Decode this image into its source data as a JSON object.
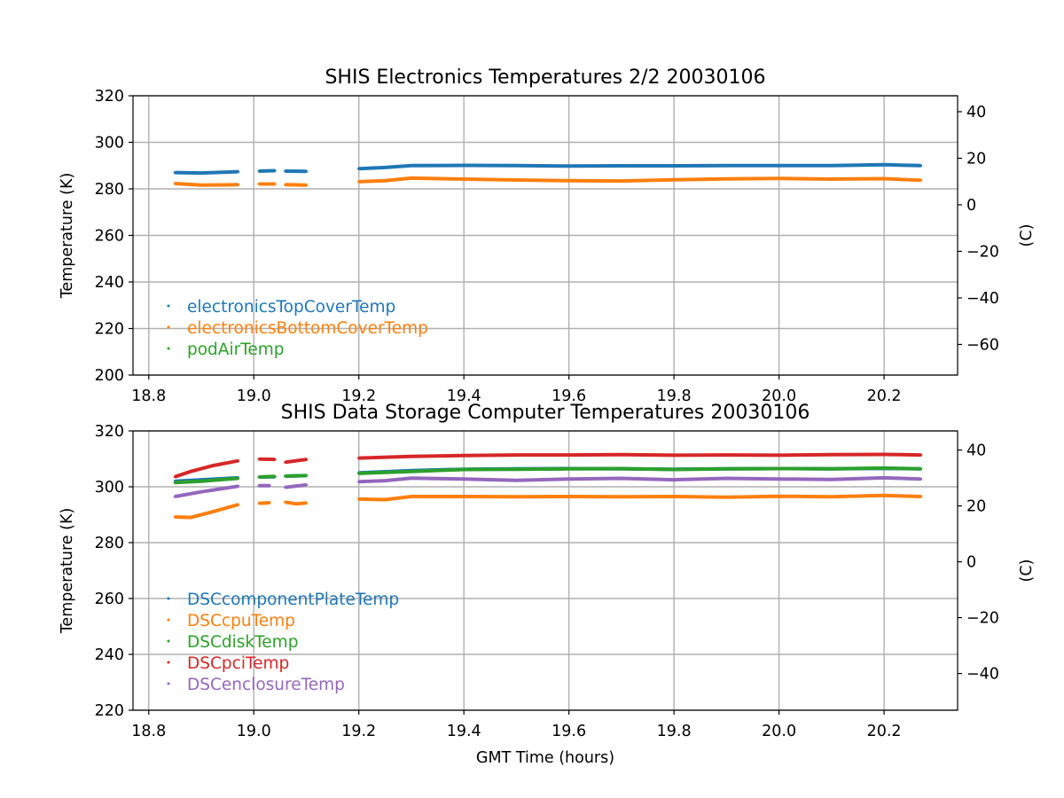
{
  "chart_data": [
    {
      "type": "scatter",
      "title": "SHIS Electronics Temperatures 2/2 20030106",
      "xlabel": "",
      "ylabel": "Temperature (K)",
      "ylabel_right": "(C)",
      "xlim": [
        18.77,
        20.34
      ],
      "ylim": [
        200,
        320
      ],
      "ylim_right": [
        -73.15,
        46.85
      ],
      "xticks": [
        "18.8",
        "19.0",
        "19.2",
        "19.4",
        "19.6",
        "19.8",
        "20.0",
        "20.2"
      ],
      "yticks": [
        "200",
        "220",
        "240",
        "260",
        "280",
        "300",
        "320"
      ],
      "yticks_right": [
        "−60",
        "−40",
        "−20",
        "0",
        "20",
        "40"
      ],
      "grid": true,
      "legend_position": "lower-left",
      "series": [
        {
          "name": "electronicsTopCoverTemp",
          "color": "#1f77b4",
          "segments": [
            [
              [
                18.85,
                287.0
              ],
              [
                18.9,
                286.8
              ],
              [
                18.95,
                287.2
              ],
              [
                18.97,
                287.4
              ]
            ],
            [
              [
                19.01,
                287.6
              ],
              [
                19.04,
                287.8
              ]
            ],
            [
              [
                19.06,
                287.6
              ],
              [
                19.1,
                287.5
              ]
            ],
            [
              [
                19.2,
                288.7
              ],
              [
                19.25,
                289.2
              ],
              [
                19.3,
                290.0
              ],
              [
                19.4,
                290.1
              ],
              [
                19.5,
                290.0
              ],
              [
                19.6,
                289.8
              ],
              [
                19.7,
                289.9
              ],
              [
                19.8,
                289.9
              ],
              [
                19.9,
                290.0
              ],
              [
                20.0,
                290.0
              ],
              [
                20.1,
                290.0
              ],
              [
                20.2,
                290.4
              ],
              [
                20.27,
                290.0
              ]
            ]
          ]
        },
        {
          "name": "electronicsBottomCoverTemp",
          "color": "#ff7f0e",
          "segments": [
            [
              [
                18.85,
                282.3
              ],
              [
                18.9,
                281.6
              ],
              [
                18.95,
                281.7
              ],
              [
                18.97,
                281.8
              ]
            ],
            [
              [
                19.01,
                282.1
              ],
              [
                19.04,
                282.1
              ]
            ],
            [
              [
                19.06,
                281.8
              ],
              [
                19.1,
                281.6
              ]
            ],
            [
              [
                19.2,
                283.1
              ],
              [
                19.25,
                283.5
              ],
              [
                19.3,
                284.6
              ],
              [
                19.4,
                284.2
              ],
              [
                19.5,
                283.8
              ],
              [
                19.6,
                283.5
              ],
              [
                19.7,
                283.4
              ],
              [
                19.8,
                283.9
              ],
              [
                19.9,
                284.3
              ],
              [
                20.0,
                284.5
              ],
              [
                20.1,
                284.2
              ],
              [
                20.2,
                284.4
              ],
              [
                20.27,
                283.7
              ]
            ]
          ]
        },
        {
          "name": "podAirTemp",
          "color": "#2ca02c",
          "segments": []
        }
      ]
    },
    {
      "type": "scatter",
      "title": "SHIS Data Storage Computer Temperatures 20030106",
      "xlabel": "GMT Time (hours)",
      "ylabel": "Temperature (K)",
      "ylabel_right": "(C)",
      "xlim": [
        18.77,
        20.34
      ],
      "ylim": [
        220,
        320
      ],
      "ylim_right": [
        -53.15,
        46.85
      ],
      "xticks": [
        "18.8",
        "19.0",
        "19.2",
        "19.4",
        "19.6",
        "19.8",
        "20.0",
        "20.2"
      ],
      "yticks": [
        "220",
        "240",
        "260",
        "280",
        "300",
        "320"
      ],
      "yticks_right": [
        "−40",
        "−20",
        "0",
        "20",
        "40"
      ],
      "grid": true,
      "legend_position": "lower-left",
      "series": [
        {
          "name": "DSCcomponentPlateTemp",
          "color": "#1f77b4",
          "segments": [
            [
              [
                18.85,
                302.0
              ],
              [
                18.9,
                302.5
              ],
              [
                18.97,
                303.2
              ]
            ],
            [
              [
                19.01,
                303.5
              ],
              [
                19.04,
                303.6
              ]
            ],
            [
              [
                19.06,
                303.8
              ],
              [
                19.1,
                304.0
              ]
            ],
            [
              [
                19.2,
                305.0
              ],
              [
                19.3,
                305.8
              ],
              [
                19.4,
                306.3
              ],
              [
                19.5,
                306.4
              ],
              [
                19.6,
                306.5
              ],
              [
                19.7,
                306.4
              ],
              [
                19.8,
                306.3
              ],
              [
                19.9,
                306.4
              ],
              [
                20.0,
                306.5
              ],
              [
                20.1,
                306.4
              ],
              [
                20.2,
                306.6
              ],
              [
                20.27,
                306.4
              ]
            ]
          ]
        },
        {
          "name": "DSCcpuTemp",
          "color": "#ff7f0e",
          "segments": [
            [
              [
                18.85,
                289.2
              ],
              [
                18.88,
                289.0
              ],
              [
                18.92,
                291.0
              ],
              [
                18.97,
                293.6
              ]
            ],
            [
              [
                19.01,
                294.1
              ],
              [
                19.03,
                294.3
              ]
            ],
            [
              [
                19.06,
                294.5
              ],
              [
                19.08,
                293.9
              ],
              [
                19.1,
                294.2
              ]
            ],
            [
              [
                19.2,
                295.6
              ],
              [
                19.25,
                295.4
              ],
              [
                19.3,
                296.5
              ],
              [
                19.4,
                296.5
              ],
              [
                19.5,
                296.4
              ],
              [
                19.6,
                296.5
              ],
              [
                19.7,
                296.4
              ],
              [
                19.8,
                296.5
              ],
              [
                19.9,
                296.3
              ],
              [
                20.0,
                296.6
              ],
              [
                20.1,
                296.4
              ],
              [
                20.2,
                296.9
              ],
              [
                20.27,
                296.5
              ]
            ]
          ]
        },
        {
          "name": "DSCdiskTemp",
          "color": "#2ca02c",
          "segments": [
            [
              [
                18.85,
                301.5
              ],
              [
                18.9,
                302.0
              ],
              [
                18.97,
                303.0
              ]
            ],
            [
              [
                19.01,
                303.5
              ],
              [
                19.04,
                303.7
              ]
            ],
            [
              [
                19.06,
                303.8
              ],
              [
                19.1,
                304.0
              ]
            ],
            [
              [
                19.2,
                304.8
              ],
              [
                19.3,
                305.5
              ],
              [
                19.4,
                306.2
              ],
              [
                19.5,
                306.3
              ],
              [
                19.6,
                306.4
              ],
              [
                19.7,
                306.5
              ],
              [
                19.8,
                306.2
              ],
              [
                19.9,
                306.4
              ],
              [
                20.0,
                306.5
              ],
              [
                20.1,
                306.4
              ],
              [
                20.2,
                306.7
              ],
              [
                20.27,
                306.4
              ]
            ]
          ]
        },
        {
          "name": "DSCpciTemp",
          "color": "#d62728",
          "segments": [
            [
              [
                18.85,
                303.6
              ],
              [
                18.88,
                305.5
              ],
              [
                18.92,
                307.5
              ],
              [
                18.97,
                309.3
              ]
            ],
            [
              [
                19.01,
                309.9
              ],
              [
                19.04,
                309.8
              ]
            ],
            [
              [
                19.06,
                308.8
              ],
              [
                19.1,
                309.8
              ]
            ],
            [
              [
                19.2,
                310.3
              ],
              [
                19.3,
                310.9
              ],
              [
                19.4,
                311.2
              ],
              [
                19.5,
                311.4
              ],
              [
                19.6,
                311.4
              ],
              [
                19.7,
                311.5
              ],
              [
                19.8,
                311.3
              ],
              [
                19.9,
                311.4
              ],
              [
                20.0,
                311.3
              ],
              [
                20.1,
                311.5
              ],
              [
                20.2,
                311.6
              ],
              [
                20.27,
                311.4
              ]
            ]
          ]
        },
        {
          "name": "DSCenclosureTemp",
          "color": "#9467bd",
          "segments": [
            [
              [
                18.85,
                296.5
              ],
              [
                18.9,
                298.2
              ],
              [
                18.97,
                300.2
              ]
            ],
            [
              [
                19.01,
                300.4
              ],
              [
                19.03,
                300.4
              ]
            ],
            [
              [
                19.06,
                299.8
              ],
              [
                19.1,
                300.7
              ]
            ],
            [
              [
                19.2,
                301.8
              ],
              [
                19.25,
                302.2
              ],
              [
                19.3,
                303.1
              ],
              [
                19.4,
                302.8
              ],
              [
                19.5,
                302.3
              ],
              [
                19.6,
                302.8
              ],
              [
                19.7,
                303.0
              ],
              [
                19.8,
                302.5
              ],
              [
                19.9,
                303.0
              ],
              [
                20.0,
                302.8
              ],
              [
                20.1,
                302.6
              ],
              [
                20.2,
                303.2
              ],
              [
                20.27,
                302.8
              ]
            ]
          ]
        }
      ]
    }
  ]
}
